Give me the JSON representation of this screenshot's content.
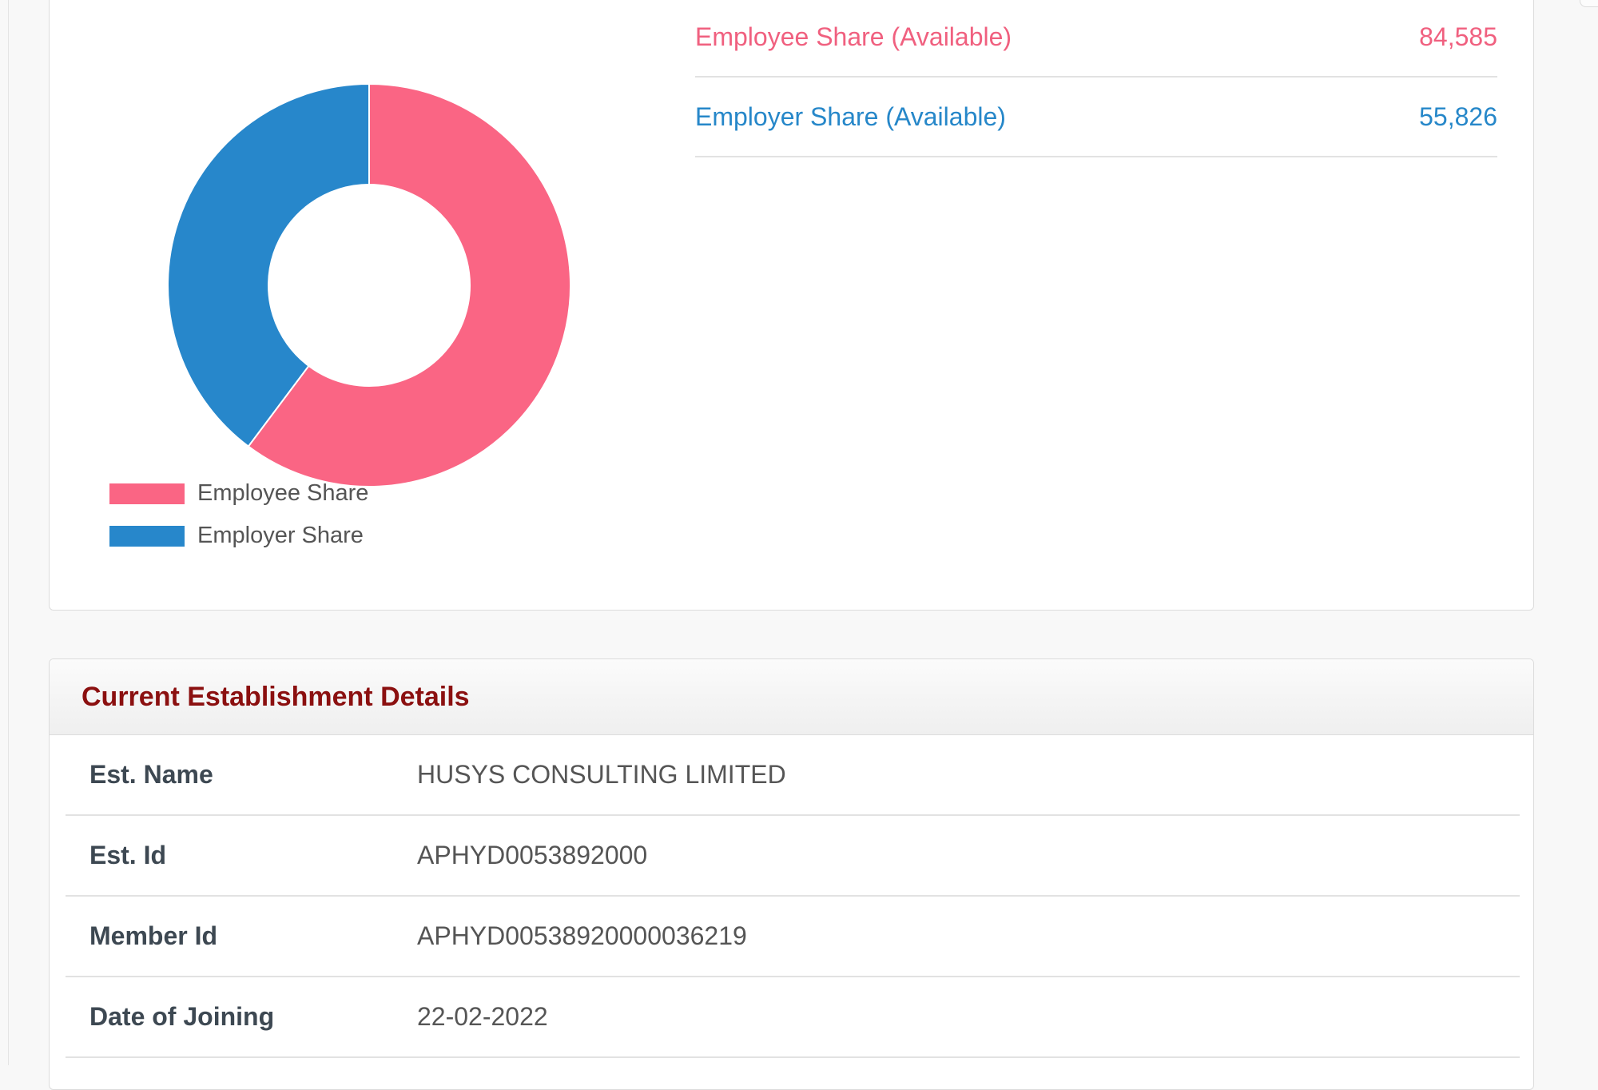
{
  "chart_data": {
    "type": "pie",
    "style": "doughnut",
    "series": [
      {
        "name": "Employee Share",
        "value": 84585,
        "color": "#fa6584"
      },
      {
        "name": "Employer Share",
        "value": 55826,
        "color": "#2787cb"
      }
    ],
    "legend_position": "bottom-left"
  },
  "shares": [
    {
      "label": "Employee Share (Available)",
      "value": "84,585",
      "color": "#f0607f"
    },
    {
      "label": "Employer Share (Available)",
      "value": "55,826",
      "color": "#2687c9"
    }
  ],
  "establishment": {
    "title": "Current Establishment Details",
    "rows": [
      {
        "label": "Est. Name",
        "value": "HUSYS CONSULTING LIMITED"
      },
      {
        "label": "Est. Id",
        "value": "APHYD0053892000"
      },
      {
        "label": "Member Id",
        "value": "APHYD00538920000036219"
      },
      {
        "label": "Date of Joining",
        "value": "22-02-2022"
      }
    ]
  }
}
